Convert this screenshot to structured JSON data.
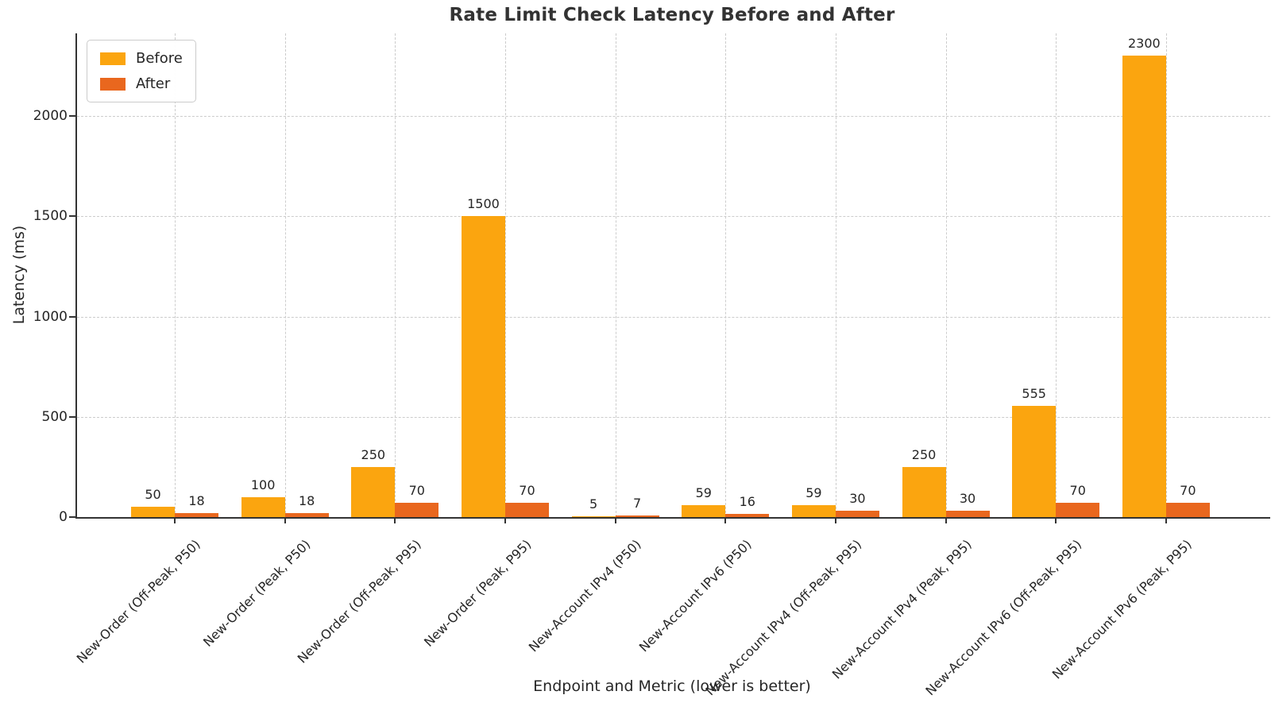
{
  "chart_data": {
    "type": "bar",
    "title": "Rate Limit Check Latency Before and After",
    "xlabel": "Endpoint and Metric (lower is better)",
    "ylabel": "Latency (ms)",
    "categories": [
      "New-Order (Off-Peak, P50)",
      "New-Order (Peak, P50)",
      "New-Order (Off-Peak, P95)",
      "New-Order (Peak, P95)",
      "New-Account IPv4 (P50)",
      "New-Account IPv6 (P50)",
      "New-Account IPv4 (Off-Peak, P95)",
      "New-Account IPv4 (Peak, P95)",
      "New-Account IPv6 (Off-Peak, P95)",
      "New-Account IPv6 (Peak, P95)"
    ],
    "series": [
      {
        "name": "Before",
        "color": "#FBA50F",
        "values": [
          50,
          100,
          250,
          1500,
          5,
          59,
          59,
          250,
          555,
          2300
        ]
      },
      {
        "name": "After",
        "color": "#E9671E",
        "values": [
          18,
          18,
          70,
          70,
          7,
          16,
          30,
          30,
          70,
          70
        ]
      }
    ],
    "yticks": [
      0,
      500,
      1000,
      1500,
      2000
    ],
    "ylim": [
      0,
      2412
    ],
    "grid": true,
    "value_labels_shown": true,
    "legend_position": "upper-left",
    "style_colors": {
      "axis": "#333333",
      "gridline": "#cccccc",
      "text": "#262626"
    }
  }
}
